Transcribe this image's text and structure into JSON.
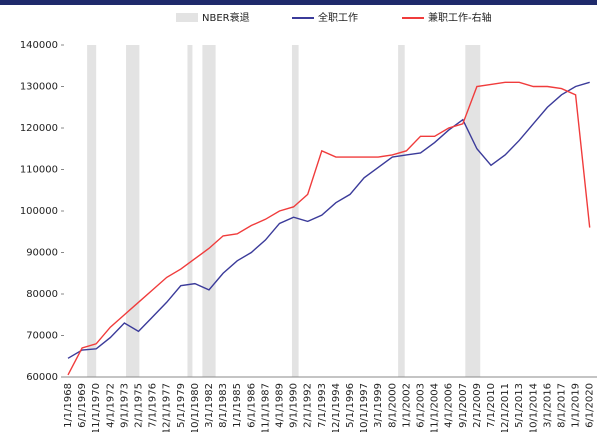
{
  "chart_data": {
    "type": "line",
    "legend": {
      "shade": "NBER衰退"
    },
    "shade_color": "#e3e3e3",
    "recessions": [
      [
        1969.92,
        1970.83
      ],
      [
        1973.83,
        1975.17
      ],
      [
        1980.0,
        1980.5
      ],
      [
        1981.5,
        1982.83
      ],
      [
        1990.5,
        1991.17
      ],
      [
        2001.17,
        2001.83
      ],
      [
        2007.92,
        2009.42
      ]
    ],
    "categories": [
      "1/1/1968",
      "6/1/1969",
      "11/1/1970",
      "4/1/1972",
      "9/1/1973",
      "2/1/1975",
      "7/1/1976",
      "12/1/1977",
      "5/1/1979",
      "10/1/1980",
      "3/1/1982",
      "8/1/1983",
      "1/1/1985",
      "6/1/1986",
      "11/1/1987",
      "4/1/1989",
      "9/1/1990",
      "2/1/1992",
      "7/1/1993",
      "12/1/1994",
      "5/1/1996",
      "10/1/1997",
      "3/1/1999",
      "8/1/2000",
      "1/1/2002",
      "6/1/2003",
      "11/1/2004",
      "4/1/2006",
      "9/1/2007",
      "2/1/2009",
      "7/1/2010",
      "12/1/2011",
      "5/1/2013",
      "10/1/2014",
      "3/1/2016",
      "8/1/2017",
      "1/1/2019",
      "6/1/2020"
    ],
    "series": [
      {
        "name": "全职工作",
        "color": "#3b3b9a",
        "values": [
          64500,
          66500,
          66800,
          69500,
          73000,
          71000,
          74500,
          78000,
          82000,
          82500,
          81000,
          85000,
          88000,
          90000,
          93000,
          97000,
          98500,
          97500,
          99000,
          102000,
          104000,
          108000,
          110500,
          113000,
          113500,
          114000,
          116500,
          119500,
          122000,
          115000,
          111000,
          113500,
          117000,
          121000,
          125000,
          128000,
          130000,
          131000
        ]
      },
      {
        "name": "兼职工作-右轴",
        "color": "#f03c3c",
        "values": [
          60500,
          67000,
          68000,
          72000,
          75000,
          78000,
          81000,
          84000,
          86000,
          88500,
          91000,
          94000,
          94500,
          96500,
          98000,
          100000,
          101000,
          104000,
          114500,
          113000,
          113000,
          113000,
          113000,
          113500,
          114500,
          118000,
          118000,
          120000,
          121000,
          130000,
          130500,
          131000,
          131000,
          130000,
          130000,
          129500,
          128000,
          96000
        ]
      }
    ],
    "ylim": [
      60000,
      140000
    ],
    "yticks": [
      60000,
      70000,
      80000,
      90000,
      100000,
      110000,
      120000,
      130000,
      140000
    ]
  }
}
